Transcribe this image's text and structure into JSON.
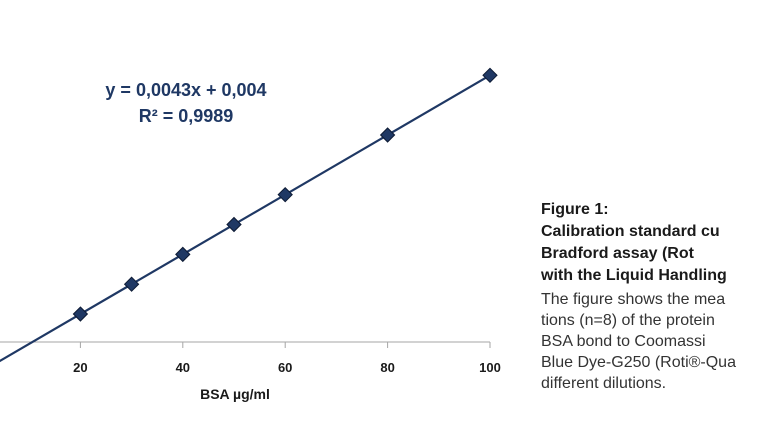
{
  "chart_data": {
    "type": "scatter",
    "xlabel": "BSA µg/ml",
    "ylabel": "",
    "x_ticks": [
      "20",
      "40",
      "60",
      "80",
      "100"
    ],
    "x": [
      20,
      30,
      40,
      50,
      60,
      80,
      100
    ],
    "y": [
      0.09,
      0.133,
      0.176,
      0.219,
      0.262,
      0.348,
      0.434
    ],
    "trendline": {
      "type": "linear",
      "slope": 0.0043,
      "intercept": 0.004
    },
    "annotations": {
      "equation": "y = 0,0043x + 0,004",
      "r_squared": "R² = 0,9989"
    },
    "marker": "diamond",
    "colors": {
      "line": "#1f3864",
      "marker": "#1f3864"
    },
    "xlim": [
      0,
      100
    ]
  },
  "caption": {
    "title": "Figure 1:",
    "heading_lines": [
      "Calibration standard cu",
      "Bradford assay (Rot",
      "with the Liquid Handling"
    ],
    "body_lines": [
      "The figure shows the mea",
      "tions (n=8) of the protein",
      "BSA bond to Coomassi",
      "Blue Dye-G250 (Roti®-Qua",
      "different dilutions."
    ]
  }
}
